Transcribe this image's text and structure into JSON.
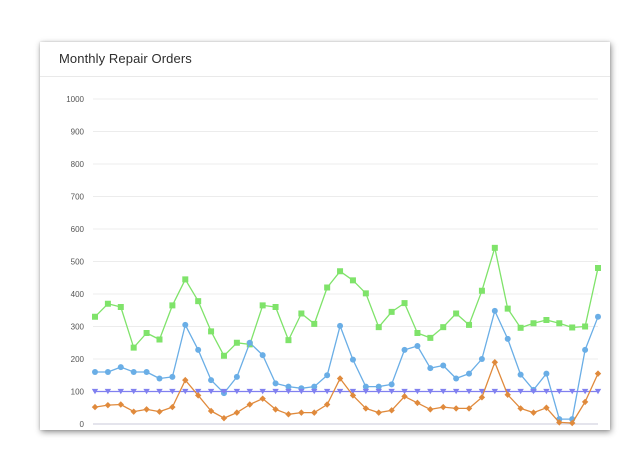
{
  "card": {
    "title": "Monthly Repair Orders"
  },
  "chart_data": {
    "type": "line",
    "title": "Monthly Repair Orders",
    "xlabel": "",
    "ylabel": "",
    "ylim": [
      0,
      1000
    ],
    "yticks": [
      0,
      100,
      200,
      300,
      400,
      500,
      600,
      700,
      800,
      900,
      1000
    ],
    "grid": true,
    "legend": "none",
    "series": [
      {
        "color": "#7fe36a",
        "marker": "square",
        "values": [
          330,
          370,
          360,
          235,
          280,
          260,
          365,
          445,
          378,
          285,
          210,
          250,
          245,
          365,
          360,
          258,
          340,
          308,
          420,
          470,
          442,
          402,
          298,
          345,
          372,
          280,
          265,
          298,
          340,
          305,
          410,
          542,
          355,
          296,
          310,
          320,
          310,
          297,
          300,
          480
        ]
      },
      {
        "color": "#6aaee6",
        "marker": "circle",
        "values": [
          160,
          160,
          175,
          160,
          160,
          140,
          145,
          305,
          228,
          135,
          95,
          145,
          250,
          212,
          125,
          115,
          110,
          115,
          150,
          302,
          198,
          115,
          115,
          122,
          228,
          240,
          172,
          180,
          140,
          155,
          200,
          348,
          262,
          152,
          105,
          155,
          15,
          15,
          228,
          330
        ]
      },
      {
        "color": "#8080f0",
        "marker": "triangle-down",
        "values": [
          100,
          100,
          100,
          100,
          100,
          100,
          100,
          100,
          100,
          100,
          100,
          100,
          100,
          100,
          100,
          100,
          100,
          100,
          100,
          100,
          100,
          100,
          100,
          100,
          100,
          100,
          100,
          100,
          100,
          100,
          100,
          100,
          100,
          100,
          100,
          100,
          100,
          100,
          100,
          100
        ]
      },
      {
        "color": "#e08a3c",
        "marker": "diamond",
        "values": [
          52,
          58,
          60,
          38,
          45,
          38,
          52,
          135,
          88,
          40,
          18,
          35,
          60,
          78,
          45,
          30,
          35,
          35,
          60,
          140,
          88,
          48,
          35,
          42,
          85,
          65,
          45,
          52,
          48,
          48,
          82,
          190,
          90,
          48,
          35,
          50,
          5,
          3,
          68,
          155
        ]
      }
    ]
  }
}
